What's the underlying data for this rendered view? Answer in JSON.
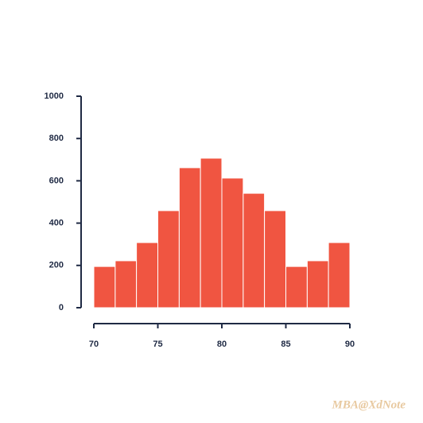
{
  "chart_data": {
    "type": "histogram",
    "bins": [
      70,
      71.67,
      73.33,
      75,
      76.67,
      78.33,
      80,
      81.67,
      83.33,
      85,
      86.67,
      88.33,
      90
    ],
    "values": [
      195,
      222,
      308,
      459,
      662,
      707,
      613,
      541,
      459,
      195,
      222,
      308
    ],
    "color": "#f05541",
    "xlim": [
      70,
      90
    ],
    "xticks": [
      70,
      75,
      80,
      85,
      90
    ],
    "ylim": [
      0,
      1000
    ],
    "yticks": [
      0,
      200,
      400,
      600,
      800,
      1000
    ],
    "grid": false
  },
  "watermark": "MBA@XdNote"
}
